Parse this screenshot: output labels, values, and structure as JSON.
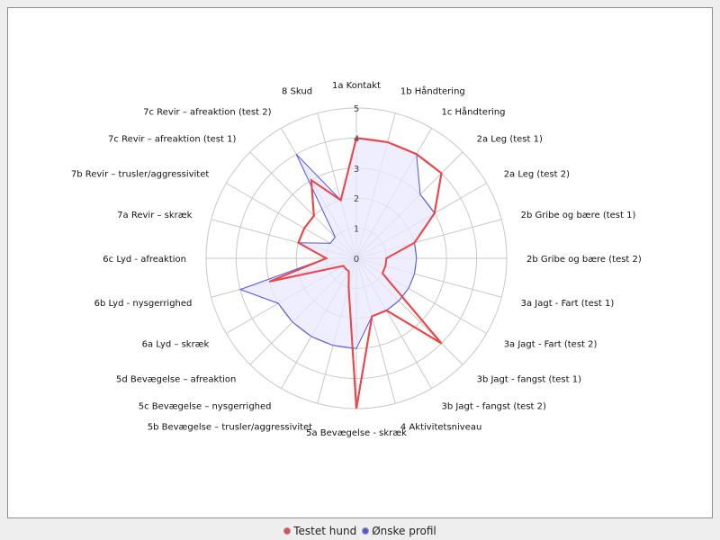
{
  "chart_data": {
    "type": "radar",
    "title": "",
    "categories": [
      "1a Kontakt",
      "1b Håndtering",
      "1c Håndtering",
      "2a Leg (test 1)",
      "2a Leg (test 2)",
      "2b Gribe og bære (test 1)",
      "2b Gribe og bære (test 2)",
      "3a Jagt - Fart (test 1)",
      "3a Jagt - Fart (test 2)",
      "3b Jagt - fangst (test 1)",
      "3b Jagt - fangst (test 2)",
      "4 Aktivitetsniveau",
      "5a Bevægelse - skræk",
      "5b Bevægelse – trusler/aggressivitet",
      "5c Bevægelse – nysgerrighed",
      "5d Bevægelse – afreaktion",
      "6a Lyd – skræk",
      "6b Lyd - nysgerrighed",
      "6c Lyd - afreaktion",
      "7a Revir – skræk",
      "7b Revir – trusler/aggressivitet",
      "7c Revir – afreaktion (test 1)",
      "7c Revir – afreaktion (test 2)",
      "8 Skud"
    ],
    "r_ticks": [
      "0",
      "1",
      "2",
      "3",
      "4",
      "5"
    ],
    "r_range": [
      0,
      5
    ],
    "grid": true,
    "legend_position": "bottom",
    "series": [
      {
        "name": "Testet hund",
        "color": "#e8474b",
        "values": [
          4,
          4,
          4,
          4,
          3,
          2,
          1,
          1,
          1,
          4,
          2,
          2,
          5,
          1,
          0.5,
          0.5,
          0.5,
          3,
          1,
          2,
          2,
          2,
          3,
          2
        ]
      },
      {
        "name": "Ønske profil",
        "color": "#5353e0",
        "fill": "#e8e8ff",
        "values": [
          4,
          4,
          4,
          3,
          3,
          2,
          2,
          2,
          2,
          2,
          2,
          2,
          3,
          3,
          3,
          3,
          3,
          4,
          1,
          2,
          1,
          1,
          4,
          2
        ]
      }
    ]
  }
}
